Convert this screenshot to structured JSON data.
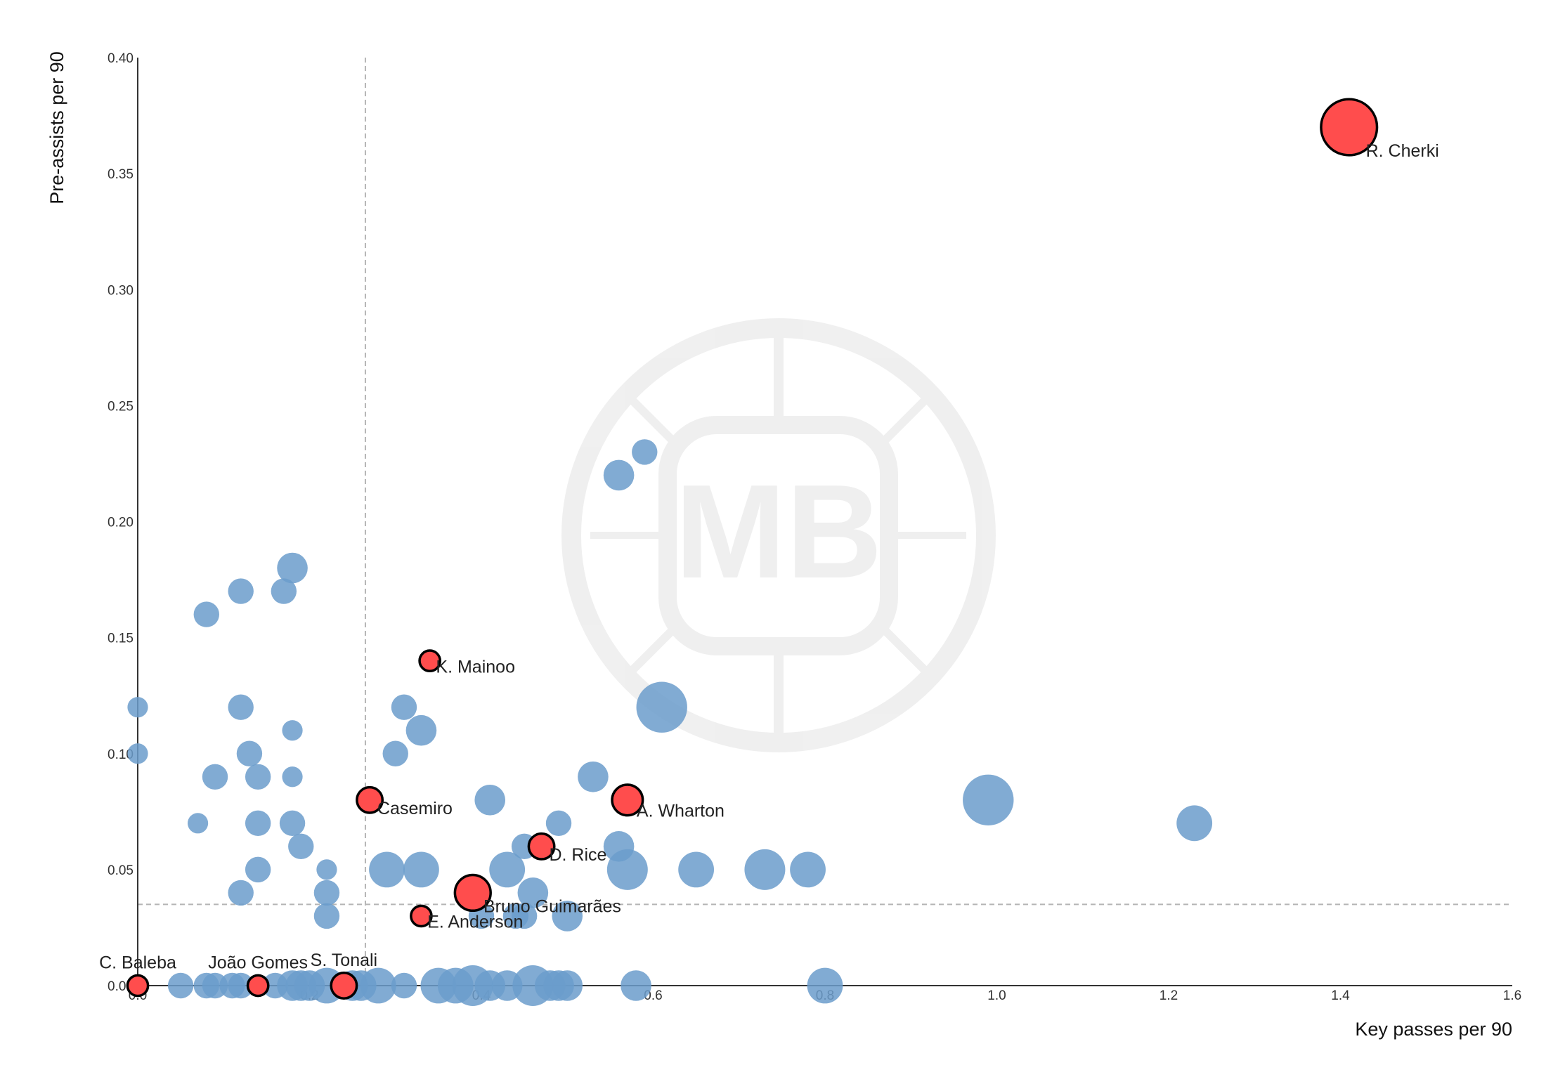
{
  "chart_data": {
    "type": "scatter",
    "title": "",
    "xlabel": "Key passes per 90",
    "ylabel": "Pre-assists per 90",
    "xlim": [
      0.0,
      1.6
    ],
    "ylim": [
      0.0,
      0.4
    ],
    "x_ticks": [
      "0.0",
      "0.2",
      "0.4",
      "0.6",
      "0.8",
      "1.0",
      "1.2",
      "1.4",
      "1.6"
    ],
    "y_ticks": [
      "0.00",
      "0.05",
      "0.10",
      "0.15",
      "0.20",
      "0.25",
      "0.30",
      "0.35",
      "0.40"
    ],
    "reference_lines": {
      "x_mean": 0.265,
      "y_mean": 0.035
    },
    "grid": false,
    "legend": "none",
    "watermark": "MB",
    "colors": {
      "base": "#6b9ccb",
      "highlight": "#ff4d4d",
      "highlight_edge": "#000000",
      "axis": "#333333",
      "ref_line": "#b5b5b5"
    },
    "points": [
      {
        "x": 0.59,
        "y": 0.23,
        "s": 2
      },
      {
        "x": 0.56,
        "y": 0.22,
        "s": 3
      },
      {
        "x": 0.18,
        "y": 0.18,
        "s": 3
      },
      {
        "x": 0.12,
        "y": 0.17,
        "s": 2
      },
      {
        "x": 0.17,
        "y": 0.17,
        "s": 2
      },
      {
        "x": 0.08,
        "y": 0.16,
        "s": 2
      },
      {
        "x": 0.0,
        "y": 0.12,
        "s": 1
      },
      {
        "x": 0.12,
        "y": 0.12,
        "s": 2
      },
      {
        "x": 0.31,
        "y": 0.12,
        "s": 2
      },
      {
        "x": 0.61,
        "y": 0.12,
        "s": 7
      },
      {
        "x": 0.18,
        "y": 0.11,
        "s": 1
      },
      {
        "x": 0.33,
        "y": 0.11,
        "s": 3
      },
      {
        "x": 0.0,
        "y": 0.1,
        "s": 1
      },
      {
        "x": 0.13,
        "y": 0.1,
        "s": 2
      },
      {
        "x": 0.3,
        "y": 0.1,
        "s": 2
      },
      {
        "x": 0.09,
        "y": 0.09,
        "s": 2
      },
      {
        "x": 0.14,
        "y": 0.09,
        "s": 2
      },
      {
        "x": 0.18,
        "y": 0.09,
        "s": 1
      },
      {
        "x": 0.53,
        "y": 0.09,
        "s": 3
      },
      {
        "x": 0.41,
        "y": 0.08,
        "s": 3
      },
      {
        "x": 0.99,
        "y": 0.08,
        "s": 7
      },
      {
        "x": 0.07,
        "y": 0.07,
        "s": 1
      },
      {
        "x": 0.14,
        "y": 0.07,
        "s": 2
      },
      {
        "x": 0.18,
        "y": 0.07,
        "s": 2
      },
      {
        "x": 0.49,
        "y": 0.07,
        "s": 2
      },
      {
        "x": 1.23,
        "y": 0.07,
        "s": 4
      },
      {
        "x": 0.19,
        "y": 0.06,
        "s": 2
      },
      {
        "x": 0.45,
        "y": 0.06,
        "s": 2
      },
      {
        "x": 0.56,
        "y": 0.06,
        "s": 3
      },
      {
        "x": 0.14,
        "y": 0.05,
        "s": 2
      },
      {
        "x": 0.22,
        "y": 0.05,
        "s": 1
      },
      {
        "x": 0.29,
        "y": 0.05,
        "s": 4
      },
      {
        "x": 0.33,
        "y": 0.05,
        "s": 4
      },
      {
        "x": 0.43,
        "y": 0.05,
        "s": 4
      },
      {
        "x": 0.57,
        "y": 0.05,
        "s": 5
      },
      {
        "x": 0.65,
        "y": 0.05,
        "s": 4
      },
      {
        "x": 0.73,
        "y": 0.05,
        "s": 5
      },
      {
        "x": 0.78,
        "y": 0.05,
        "s": 4
      },
      {
        "x": 0.12,
        "y": 0.04,
        "s": 2
      },
      {
        "x": 0.22,
        "y": 0.04,
        "s": 2
      },
      {
        "x": 0.46,
        "y": 0.04,
        "s": 3
      },
      {
        "x": 0.22,
        "y": 0.03,
        "s": 2
      },
      {
        "x": 0.4,
        "y": 0.03,
        "s": 2
      },
      {
        "x": 0.44,
        "y": 0.03,
        "s": 2
      },
      {
        "x": 0.45,
        "y": 0.03,
        "s": 2
      },
      {
        "x": 0.5,
        "y": 0.03,
        "s": 3
      },
      {
        "x": 0.05,
        "y": 0.0,
        "s": 2
      },
      {
        "x": 0.08,
        "y": 0.0,
        "s": 2
      },
      {
        "x": 0.09,
        "y": 0.0,
        "s": 2
      },
      {
        "x": 0.11,
        "y": 0.0,
        "s": 2
      },
      {
        "x": 0.12,
        "y": 0.0,
        "s": 2
      },
      {
        "x": 0.16,
        "y": 0.0,
        "s": 2
      },
      {
        "x": 0.18,
        "y": 0.0,
        "s": 3
      },
      {
        "x": 0.19,
        "y": 0.0,
        "s": 3
      },
      {
        "x": 0.2,
        "y": 0.0,
        "s": 3
      },
      {
        "x": 0.22,
        "y": 0.0,
        "s": 4
      },
      {
        "x": 0.25,
        "y": 0.0,
        "s": 3
      },
      {
        "x": 0.26,
        "y": 0.0,
        "s": 3
      },
      {
        "x": 0.28,
        "y": 0.0,
        "s": 4
      },
      {
        "x": 0.31,
        "y": 0.0,
        "s": 2
      },
      {
        "x": 0.35,
        "y": 0.0,
        "s": 4
      },
      {
        "x": 0.37,
        "y": 0.0,
        "s": 4
      },
      {
        "x": 0.39,
        "y": 0.0,
        "s": 5
      },
      {
        "x": 0.41,
        "y": 0.0,
        "s": 3
      },
      {
        "x": 0.43,
        "y": 0.0,
        "s": 3
      },
      {
        "x": 0.46,
        "y": 0.0,
        "s": 5
      },
      {
        "x": 0.48,
        "y": 0.0,
        "s": 3
      },
      {
        "x": 0.49,
        "y": 0.0,
        "s": 3
      },
      {
        "x": 0.5,
        "y": 0.0,
        "s": 3
      },
      {
        "x": 0.58,
        "y": 0.0,
        "s": 3
      },
      {
        "x": 0.8,
        "y": 0.0,
        "s": 4
      }
    ],
    "highlighted": [
      {
        "name": "R. Cherki",
        "x": 1.41,
        "y": 0.37,
        "s": 8
      },
      {
        "name": "K. Mainoo",
        "x": 0.34,
        "y": 0.14,
        "s": 1
      },
      {
        "name": "Casemiro",
        "x": 0.27,
        "y": 0.08,
        "s": 2
      },
      {
        "name": "A. Wharton",
        "x": 0.57,
        "y": 0.08,
        "s": 3
      },
      {
        "name": "D. Rice",
        "x": 0.47,
        "y": 0.06,
        "s": 2
      },
      {
        "name": "Bruno Guimarães",
        "x": 0.39,
        "y": 0.04,
        "s": 4
      },
      {
        "name": "E. Anderson",
        "x": 0.33,
        "y": 0.03,
        "s": 1
      },
      {
        "name": "C. Baleba",
        "x": 0.0,
        "y": 0.0,
        "s": 1
      },
      {
        "name": "João Gomes",
        "x": 0.14,
        "y": 0.0,
        "s": 1
      },
      {
        "name": "S. Tonali",
        "x": 0.24,
        "y": 0.0,
        "s": 2
      }
    ]
  }
}
